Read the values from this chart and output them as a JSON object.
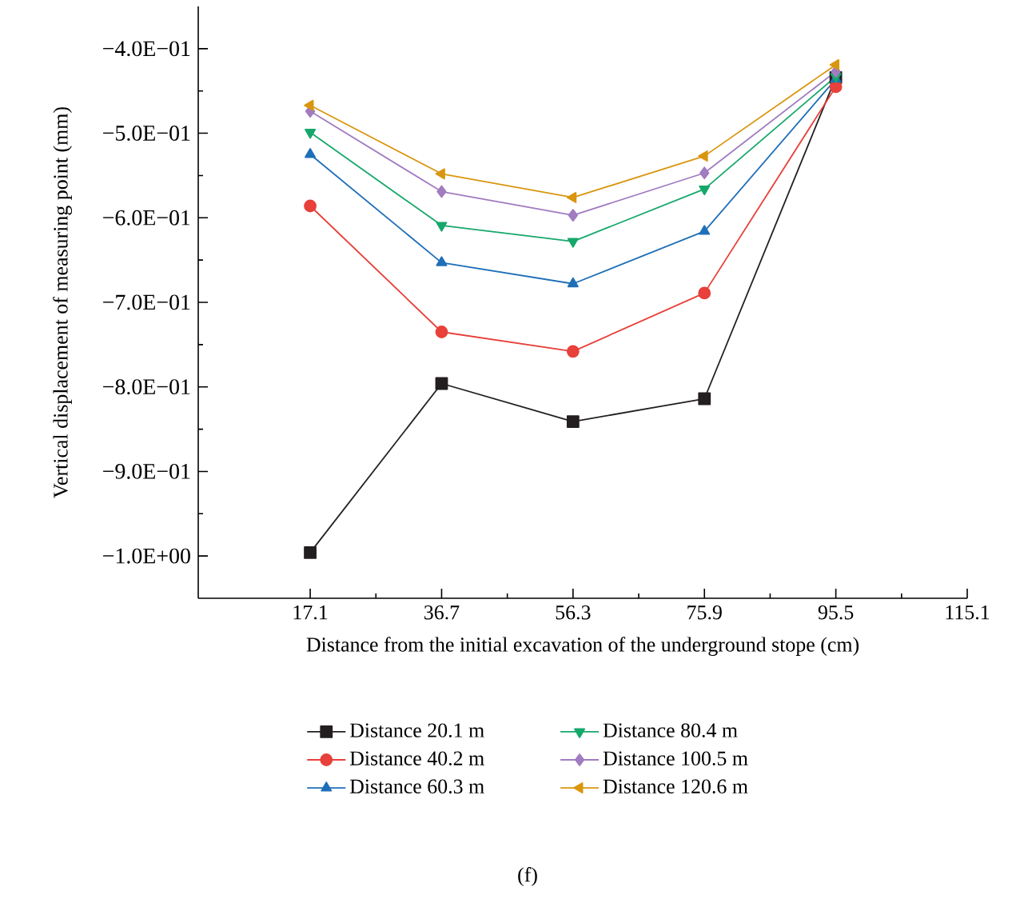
{
  "chart_data": {
    "type": "line",
    "xlabel": "Distance from the initial excavation of the underground stope (cm)",
    "ylabel": "Vertical displacement of measuring point (mm)",
    "x": [
      17.1,
      36.7,
      56.3,
      75.9,
      95.5
    ],
    "xlim": [
      0.4,
      115.1
    ],
    "xticks": [
      17.1,
      36.7,
      56.3,
      75.9,
      95.5,
      115.1
    ],
    "ylim": [
      -1.05,
      -0.35
    ],
    "yticks": [
      {
        "value": -0.4,
        "label": "−4.0E−01"
      },
      {
        "value": -0.5,
        "label": "−5.0E−01"
      },
      {
        "value": -0.6,
        "label": "−6.0E−01"
      },
      {
        "value": -0.7,
        "label": "−7.0E−01"
      },
      {
        "value": -0.8,
        "label": "−8.0E−01"
      },
      {
        "value": -0.9,
        "label": "−9.0E−01"
      },
      {
        "value": -1.0,
        "label": "−1.0E+00"
      }
    ],
    "series": [
      {
        "name": "Distance 20.1 m",
        "color": "#231f20",
        "marker": "square",
        "values": [
          -0.996,
          -0.796,
          -0.841,
          -0.814,
          -0.434
        ]
      },
      {
        "name": "Distance 40.2 m",
        "color": "#e8403a",
        "marker": "circle",
        "values": [
          -0.586,
          -0.735,
          -0.758,
          -0.689,
          -0.445
        ]
      },
      {
        "name": "Distance 60.3 m",
        "color": "#1f6fb8",
        "marker": "triangle",
        "values": [
          -0.525,
          -0.653,
          -0.678,
          -0.616,
          -0.436
        ]
      },
      {
        "name": "Distance 80.4 m",
        "color": "#16a86b",
        "marker": "triangle-down",
        "values": [
          -0.499,
          -0.609,
          -0.628,
          -0.566,
          -0.433
        ]
      },
      {
        "name": "Distance 100.5 m",
        "color": "#a17cc0",
        "marker": "diamond",
        "values": [
          -0.474,
          -0.569,
          -0.597,
          -0.547,
          -0.427
        ]
      },
      {
        "name": "Distance 120.6 m",
        "color": "#d9960f",
        "marker": "triangle-left",
        "values": [
          -0.467,
          -0.548,
          -0.576,
          -0.527,
          -0.419
        ]
      }
    ],
    "legend": "bottom",
    "line_style": "solid",
    "annotations": [
      "(f)"
    ]
  }
}
